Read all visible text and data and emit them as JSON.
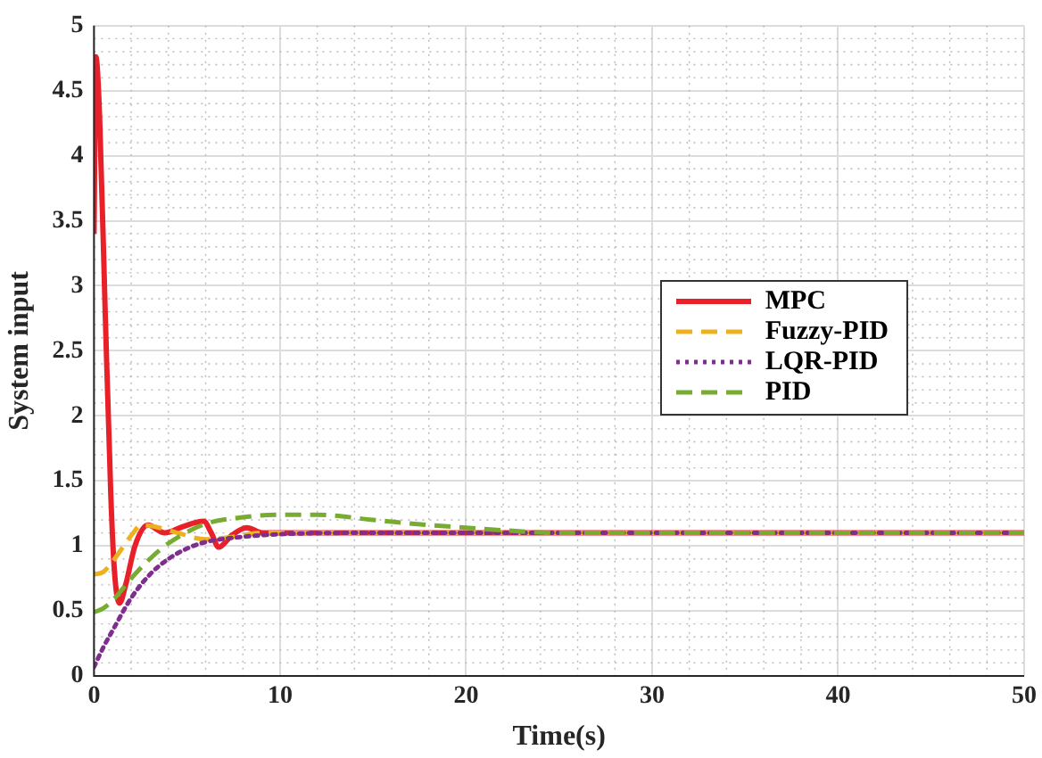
{
  "chart_data": {
    "type": "line",
    "xlabel": "Time(s)",
    "ylabel": "System input",
    "xlim": [
      0,
      50
    ],
    "xticks": [
      0,
      10,
      20,
      30,
      40,
      50
    ],
    "ylim": [
      0,
      5
    ],
    "yticks": [
      0,
      0.5,
      1,
      1.5,
      2,
      2.5,
      3,
      3.5,
      4,
      4.5,
      5
    ],
    "grid": true,
    "legend": "right",
    "marker": "none",
    "series": [
      {
        "name": "MPC",
        "color": "#e8202a",
        "line_style": "solid",
        "x": [
          0,
          0.1,
          0.3,
          0.6,
          0.9,
          1.1,
          1.37,
          1.7,
          2.2,
          2.9,
          3.8,
          4.8,
          5.9,
          6.3,
          6.7,
          7.4,
          8.2,
          9.1,
          12,
          20,
          30,
          40,
          50
        ],
        "values": [
          3.4,
          4.76,
          4.3,
          2.8,
          1.4,
          0.8,
          0.56,
          0.7,
          1.0,
          1.16,
          1.1,
          1.15,
          1.19,
          1.1,
          0.99,
          1.08,
          1.14,
          1.1,
          1.1,
          1.1,
          1.1,
          1.1,
          1.1
        ]
      },
      {
        "name": "Fuzzy-PID",
        "color": "#edb120",
        "line_style": "dashed",
        "x": [
          0,
          0.5,
          1,
          1.5,
          2,
          2.55,
          3.5,
          4.5,
          6,
          7.5,
          9,
          12,
          20,
          30,
          40,
          50
        ],
        "values": [
          0.78,
          0.8,
          0.88,
          0.98,
          1.08,
          1.16,
          1.14,
          1.1,
          1.05,
          1.07,
          1.1,
          1.1,
          1.1,
          1.1,
          1.1,
          1.1
        ]
      },
      {
        "name": "LQR-PID",
        "color": "#7e2f8e",
        "line_style": "dotted",
        "x": [
          0,
          0.5,
          1,
          2,
          3,
          4,
          5,
          6,
          8,
          10,
          15,
          20,
          30,
          40,
          50
        ],
        "values": [
          0.07,
          0.22,
          0.35,
          0.6,
          0.78,
          0.9,
          0.98,
          1.03,
          1.07,
          1.09,
          1.1,
          1.1,
          1.1,
          1.1,
          1.1
        ]
      },
      {
        "name": "PID",
        "color": "#77ac30",
        "line_style": "dashed",
        "x": [
          0,
          0.5,
          1,
          2,
          3,
          4,
          6,
          8,
          10,
          12,
          15,
          18,
          20,
          22,
          25,
          30,
          40,
          50
        ],
        "values": [
          0.49,
          0.52,
          0.58,
          0.75,
          0.9,
          1.02,
          1.17,
          1.22,
          1.24,
          1.24,
          1.2,
          1.16,
          1.14,
          1.12,
          1.1,
          1.1,
          1.1,
          1.1
        ]
      }
    ]
  }
}
